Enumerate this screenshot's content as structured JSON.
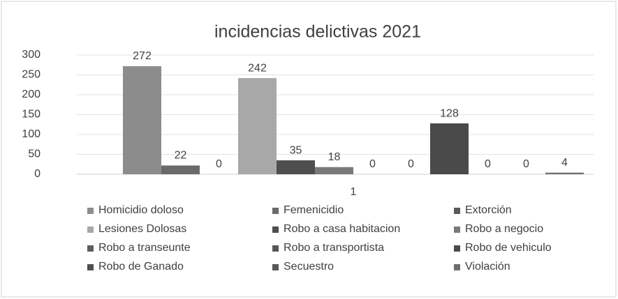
{
  "chart_data": {
    "type": "bar",
    "title": "incidencias delictivas 2021",
    "categories": [
      "1"
    ],
    "series": [
      {
        "name": "Homicidio doloso",
        "color": "#8c8c8c",
        "values": [
          272
        ]
      },
      {
        "name": "Femenicidio",
        "color": "#6a6a6a",
        "values": [
          22
        ]
      },
      {
        "name": "Extorción",
        "color": "#5a5a5a",
        "values": [
          0
        ]
      },
      {
        "name": "Lesiones Dolosas",
        "color": "#a8a8a8",
        "values": [
          242
        ]
      },
      {
        "name": "Robo a casa habitacion",
        "color": "#4e4e4e",
        "values": [
          35
        ]
      },
      {
        "name": "Robo a negocio",
        "color": "#7a7a7a",
        "values": [
          18
        ]
      },
      {
        "name": "Robo a transeunte",
        "color": "#5e5e5e",
        "values": [
          0
        ]
      },
      {
        "name": "Robo a transportista",
        "color": "#565656",
        "values": [
          0
        ]
      },
      {
        "name": "Robo de vehiculo",
        "color": "#4a4a4a",
        "values": [
          128
        ]
      },
      {
        "name": "Robo de Ganado",
        "color": "#505050",
        "values": [
          0
        ]
      },
      {
        "name": "Secuestro",
        "color": "#585858",
        "values": [
          0
        ]
      },
      {
        "name": "Violación",
        "color": "#6e6e6e",
        "values": [
          4
        ]
      }
    ],
    "ylim": [
      0,
      300
    ],
    "yticks": [
      0,
      50,
      100,
      150,
      200,
      250,
      300
    ],
    "grid": true
  }
}
